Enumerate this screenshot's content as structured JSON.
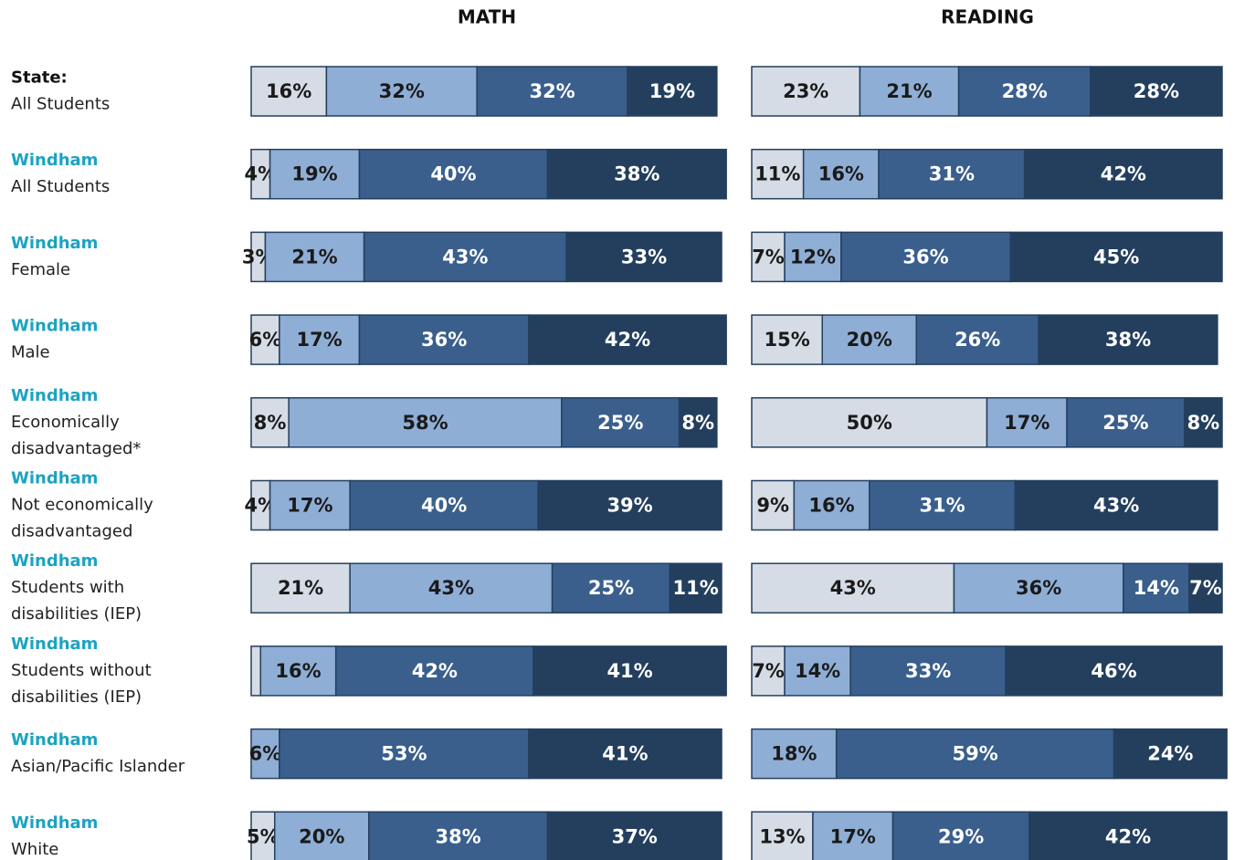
{
  "row_labels": [
    {
      "group": "State:",
      "lines": [
        "All Students"
      ]
    },
    {
      "group": "Windham",
      "lines": [
        "All Students"
      ]
    },
    {
      "group": "Windham",
      "lines": [
        "Female"
      ]
    },
    {
      "group": "Windham",
      "lines": [
        "Male"
      ]
    },
    {
      "group": "Windham",
      "lines": [
        "Economically",
        "disadvantaged*"
      ]
    },
    {
      "group": "Windham",
      "lines": [
        "Not economically",
        "disadvantaged"
      ]
    },
    {
      "group": "Windham",
      "lines": [
        "Students with",
        "disabilities (IEP)"
      ]
    },
    {
      "group": "Windham",
      "lines": [
        "Students without",
        "disabilities (IEP)"
      ]
    },
    {
      "group": "Windham",
      "lines": [
        "Asian/Pacific Islander"
      ]
    },
    {
      "group": "Windham",
      "lines": [
        "White"
      ]
    }
  ],
  "chart_data": [
    {
      "type": "stacked-bar",
      "title": "MATH",
      "xlim": [
        0,
        100
      ],
      "series": [
        {
          "color": "#d6dce5",
          "values": [
            16,
            4,
            3,
            6,
            8,
            4,
            21,
            2,
            0,
            5
          ],
          "value_labels": [
            "16%",
            "4%",
            "3%",
            "6%",
            "8%",
            "4%",
            "21%",
            null,
            null,
            "5%"
          ]
        },
        {
          "color": "#8faed6",
          "values": [
            32,
            19,
            21,
            17,
            58,
            17,
            43,
            16,
            6,
            20
          ],
          "value_labels": [
            "32%",
            "19%",
            "21%",
            "17%",
            "58%",
            "17%",
            "43%",
            "16%",
            "6%",
            "20%"
          ]
        },
        {
          "color": "#3a5f8d",
          "values": [
            32,
            40,
            43,
            36,
            25,
            40,
            25,
            42,
            53,
            38
          ],
          "value_labels": [
            "32%",
            "40%",
            "43%",
            "36%",
            "25%",
            "40%",
            "25%",
            "42%",
            "53%",
            "38%"
          ]
        },
        {
          "color": "#243f5e",
          "values": [
            19,
            38,
            33,
            42,
            8,
            39,
            11,
            41,
            41,
            37
          ],
          "value_labels": [
            "19%",
            "38%",
            "33%",
            "42%",
            "8%",
            "39%",
            "11%",
            "41%",
            "41%",
            "37%"
          ]
        }
      ]
    },
    {
      "type": "stacked-bar",
      "title": "READING",
      "xlim": [
        0,
        100
      ],
      "series": [
        {
          "color": "#d6dce5",
          "values": [
            23,
            11,
            7,
            15,
            50,
            9,
            43,
            7,
            0,
            13
          ],
          "value_labels": [
            "23%",
            "11%",
            "7%",
            "15%",
            "50%",
            "9%",
            "43%",
            "7%",
            null,
            "13%"
          ]
        },
        {
          "color": "#8faed6",
          "values": [
            21,
            16,
            12,
            20,
            17,
            16,
            36,
            14,
            18,
            17
          ],
          "value_labels": [
            "21%",
            "16%",
            "12%",
            "20%",
            "17%",
            "16%",
            "36%",
            "14%",
            "18%",
            "17%"
          ]
        },
        {
          "color": "#3a5f8d",
          "values": [
            28,
            31,
            36,
            26,
            25,
            31,
            14,
            33,
            59,
            29
          ],
          "value_labels": [
            "28%",
            "31%",
            "36%",
            "26%",
            "25%",
            "31%",
            "14%",
            "33%",
            "59%",
            "29%"
          ]
        },
        {
          "color": "#243f5e",
          "values": [
            28,
            42,
            45,
            38,
            8,
            43,
            7,
            46,
            24,
            42
          ],
          "value_labels": [
            "28%",
            "42%",
            "45%",
            "38%",
            "8%",
            "43%",
            "7%",
            "46%",
            "24%",
            "42%"
          ]
        }
      ]
    }
  ]
}
